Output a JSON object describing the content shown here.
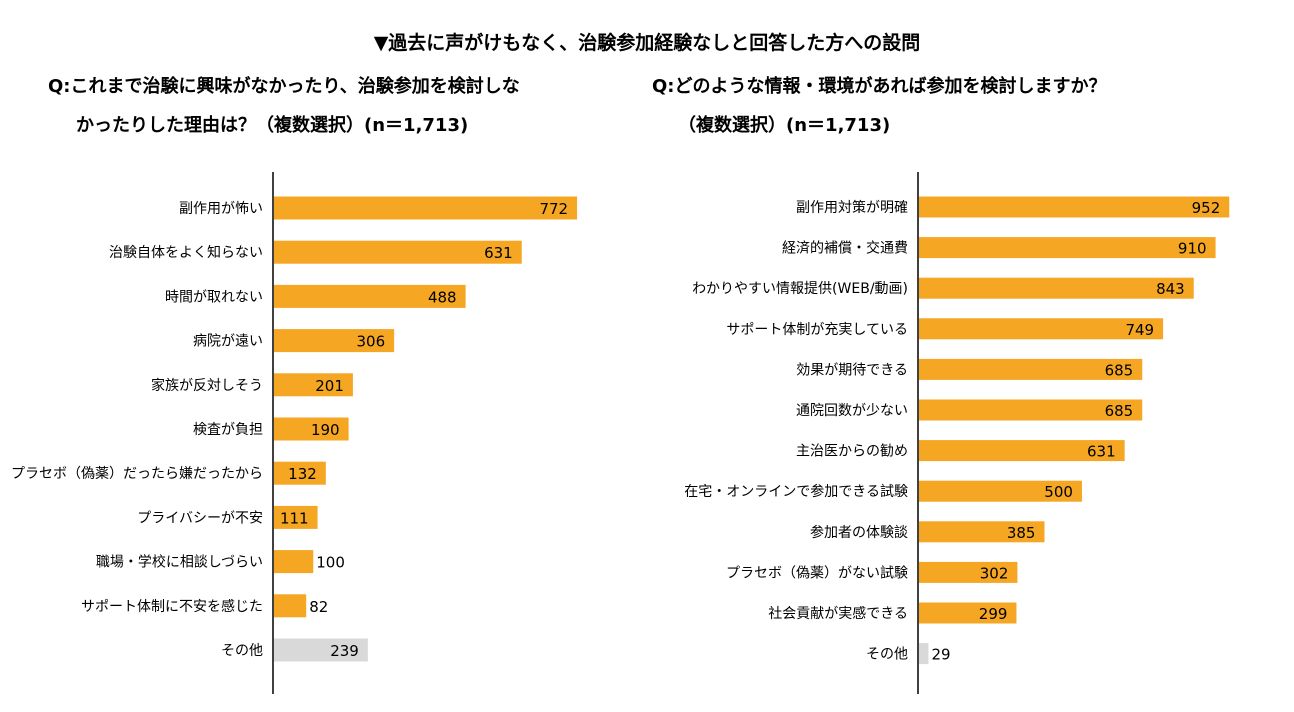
{
  "header": {
    "title": "▼過去に声がけもなく、治験参加経験なしと回答した方への設問"
  },
  "charts_text": {
    "left_q_line1": "Q:これまで治験に興味がなかったり、治験参加を検討しな",
    "left_q_line2": "かったりした理由は？（複数選択）(n＝1,713)",
    "right_q_line1": "Q:どのような情報・環境があれば参加を検討しますか？",
    "right_q_line2": "（複数選択）(n＝1,713)"
  },
  "colors": {
    "bar": "#F5A623",
    "other_bar": "#D9D9D9",
    "axis": "#000000"
  },
  "chart_data": [
    {
      "type": "bar",
      "orientation": "horizontal",
      "title": "Q:これまで治験に興味がなかったり、治験参加を検討しなかったりした理由は？（複数選択）(n＝1,713)",
      "categories": [
        "副作用が怖い",
        "治験自体をよく知らない",
        "時間が取れない",
        "病院が遠い",
        "家族が反対しそう",
        "検査が負担",
        "プラセボ（偽薬）だったら嫌だったから",
        "プライバシーが不安",
        "職場・学校に相談しづらい",
        "サポート体制に不安を感じた",
        "その他"
      ],
      "values": [
        772,
        631,
        488,
        306,
        201,
        190,
        132,
        111,
        100,
        82,
        239
      ],
      "xlim": [
        0,
        1000
      ],
      "grid": false,
      "legend": "none"
    },
    {
      "type": "bar",
      "orientation": "horizontal",
      "title": "Q:どのような情報・環境があれば参加を検討しますか？（複数選択）(n＝1,713)",
      "categories": [
        "副作用対策が明確",
        "経済的補償・交通費",
        "わかりやすい情報提供(WEB/動画)",
        "サポート体制が充実している",
        "効果が期待できる",
        "通院回数が少ない",
        "主治医からの勧め",
        "在宅・オンラインで参加できる試験",
        "参加者の体験談",
        "プラセボ（偽薬）がない試験",
        "社会貢献が実感できる",
        "その他"
      ],
      "values": [
        952,
        910,
        843,
        749,
        685,
        685,
        631,
        500,
        385,
        302,
        299,
        29
      ],
      "xlim": [
        0,
        1000
      ],
      "grid": false,
      "legend": "none"
    }
  ]
}
